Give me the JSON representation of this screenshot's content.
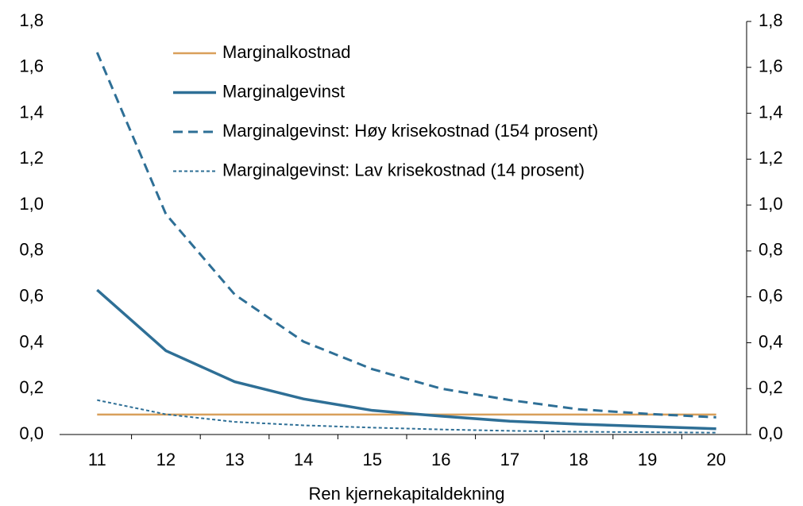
{
  "chart_data": {
    "type": "line",
    "xlabel": "Ren kjernekapitaldekning",
    "categories": [
      "11",
      "12",
      "13",
      "14",
      "15",
      "16",
      "17",
      "18",
      "19",
      "20"
    ],
    "series": [
      {
        "name": "Marginalkostnad",
        "color": "#d9a05b",
        "style": "solid",
        "values": [
          0.087,
          0.087,
          0.087,
          0.087,
          0.087,
          0.087,
          0.087,
          0.087,
          0.087,
          0.087
        ]
      },
      {
        "name": "Marginalgevinst",
        "color": "#2e6f96",
        "style": "solid",
        "values": [
          0.63,
          0.365,
          0.23,
          0.155,
          0.105,
          0.08,
          0.058,
          0.045,
          0.035,
          0.025
        ]
      },
      {
        "name": "Marginalgevinst: Høy krisekostnad (154 prosent)",
        "color": "#2e6f96",
        "style": "dashed",
        "values": [
          1.665,
          0.96,
          0.61,
          0.405,
          0.285,
          0.2,
          0.15,
          0.11,
          0.09,
          0.075
        ]
      },
      {
        "name": "Marginalgevinst: Lav krisekostnad (14 prosent)",
        "color": "#2e6f96",
        "style": "dotted",
        "values": [
          0.15,
          0.088,
          0.055,
          0.04,
          0.03,
          0.022,
          0.016,
          0.012,
          0.01,
          0.008
        ]
      }
    ],
    "ylim": [
      0,
      1.8
    ],
    "yticks": [
      {
        "value": 0,
        "label": "0,0"
      },
      {
        "value": 0.2,
        "label": "0,2"
      },
      {
        "value": 0.4,
        "label": "0,4"
      },
      {
        "value": 0.6,
        "label": "0,6"
      },
      {
        "value": 0.8,
        "label": "0,8"
      },
      {
        "value": 1.0,
        "label": "1,0"
      },
      {
        "value": 1.2,
        "label": "1,2"
      },
      {
        "value": 1.4,
        "label": "1,4"
      },
      {
        "value": 1.6,
        "label": "1,6"
      },
      {
        "value": 1.8,
        "label": "1,8"
      }
    ],
    "y2lim": [
      0,
      1.8
    ],
    "y2ticks": [
      {
        "value": 0,
        "label": "0,0"
      },
      {
        "value": 0.2,
        "label": "0,2"
      },
      {
        "value": 0.4,
        "label": "0,4"
      },
      {
        "value": 0.6,
        "label": "0,6"
      },
      {
        "value": 0.8,
        "label": "0,8"
      },
      {
        "value": 1.0,
        "label": "1,0"
      },
      {
        "value": 1.2,
        "label": "1,2"
      },
      {
        "value": 1.4,
        "label": "1,4"
      },
      {
        "value": 1.6,
        "label": "1,6"
      },
      {
        "value": 1.8,
        "label": "1,8"
      }
    ],
    "grid": false,
    "legend": "upper left"
  }
}
